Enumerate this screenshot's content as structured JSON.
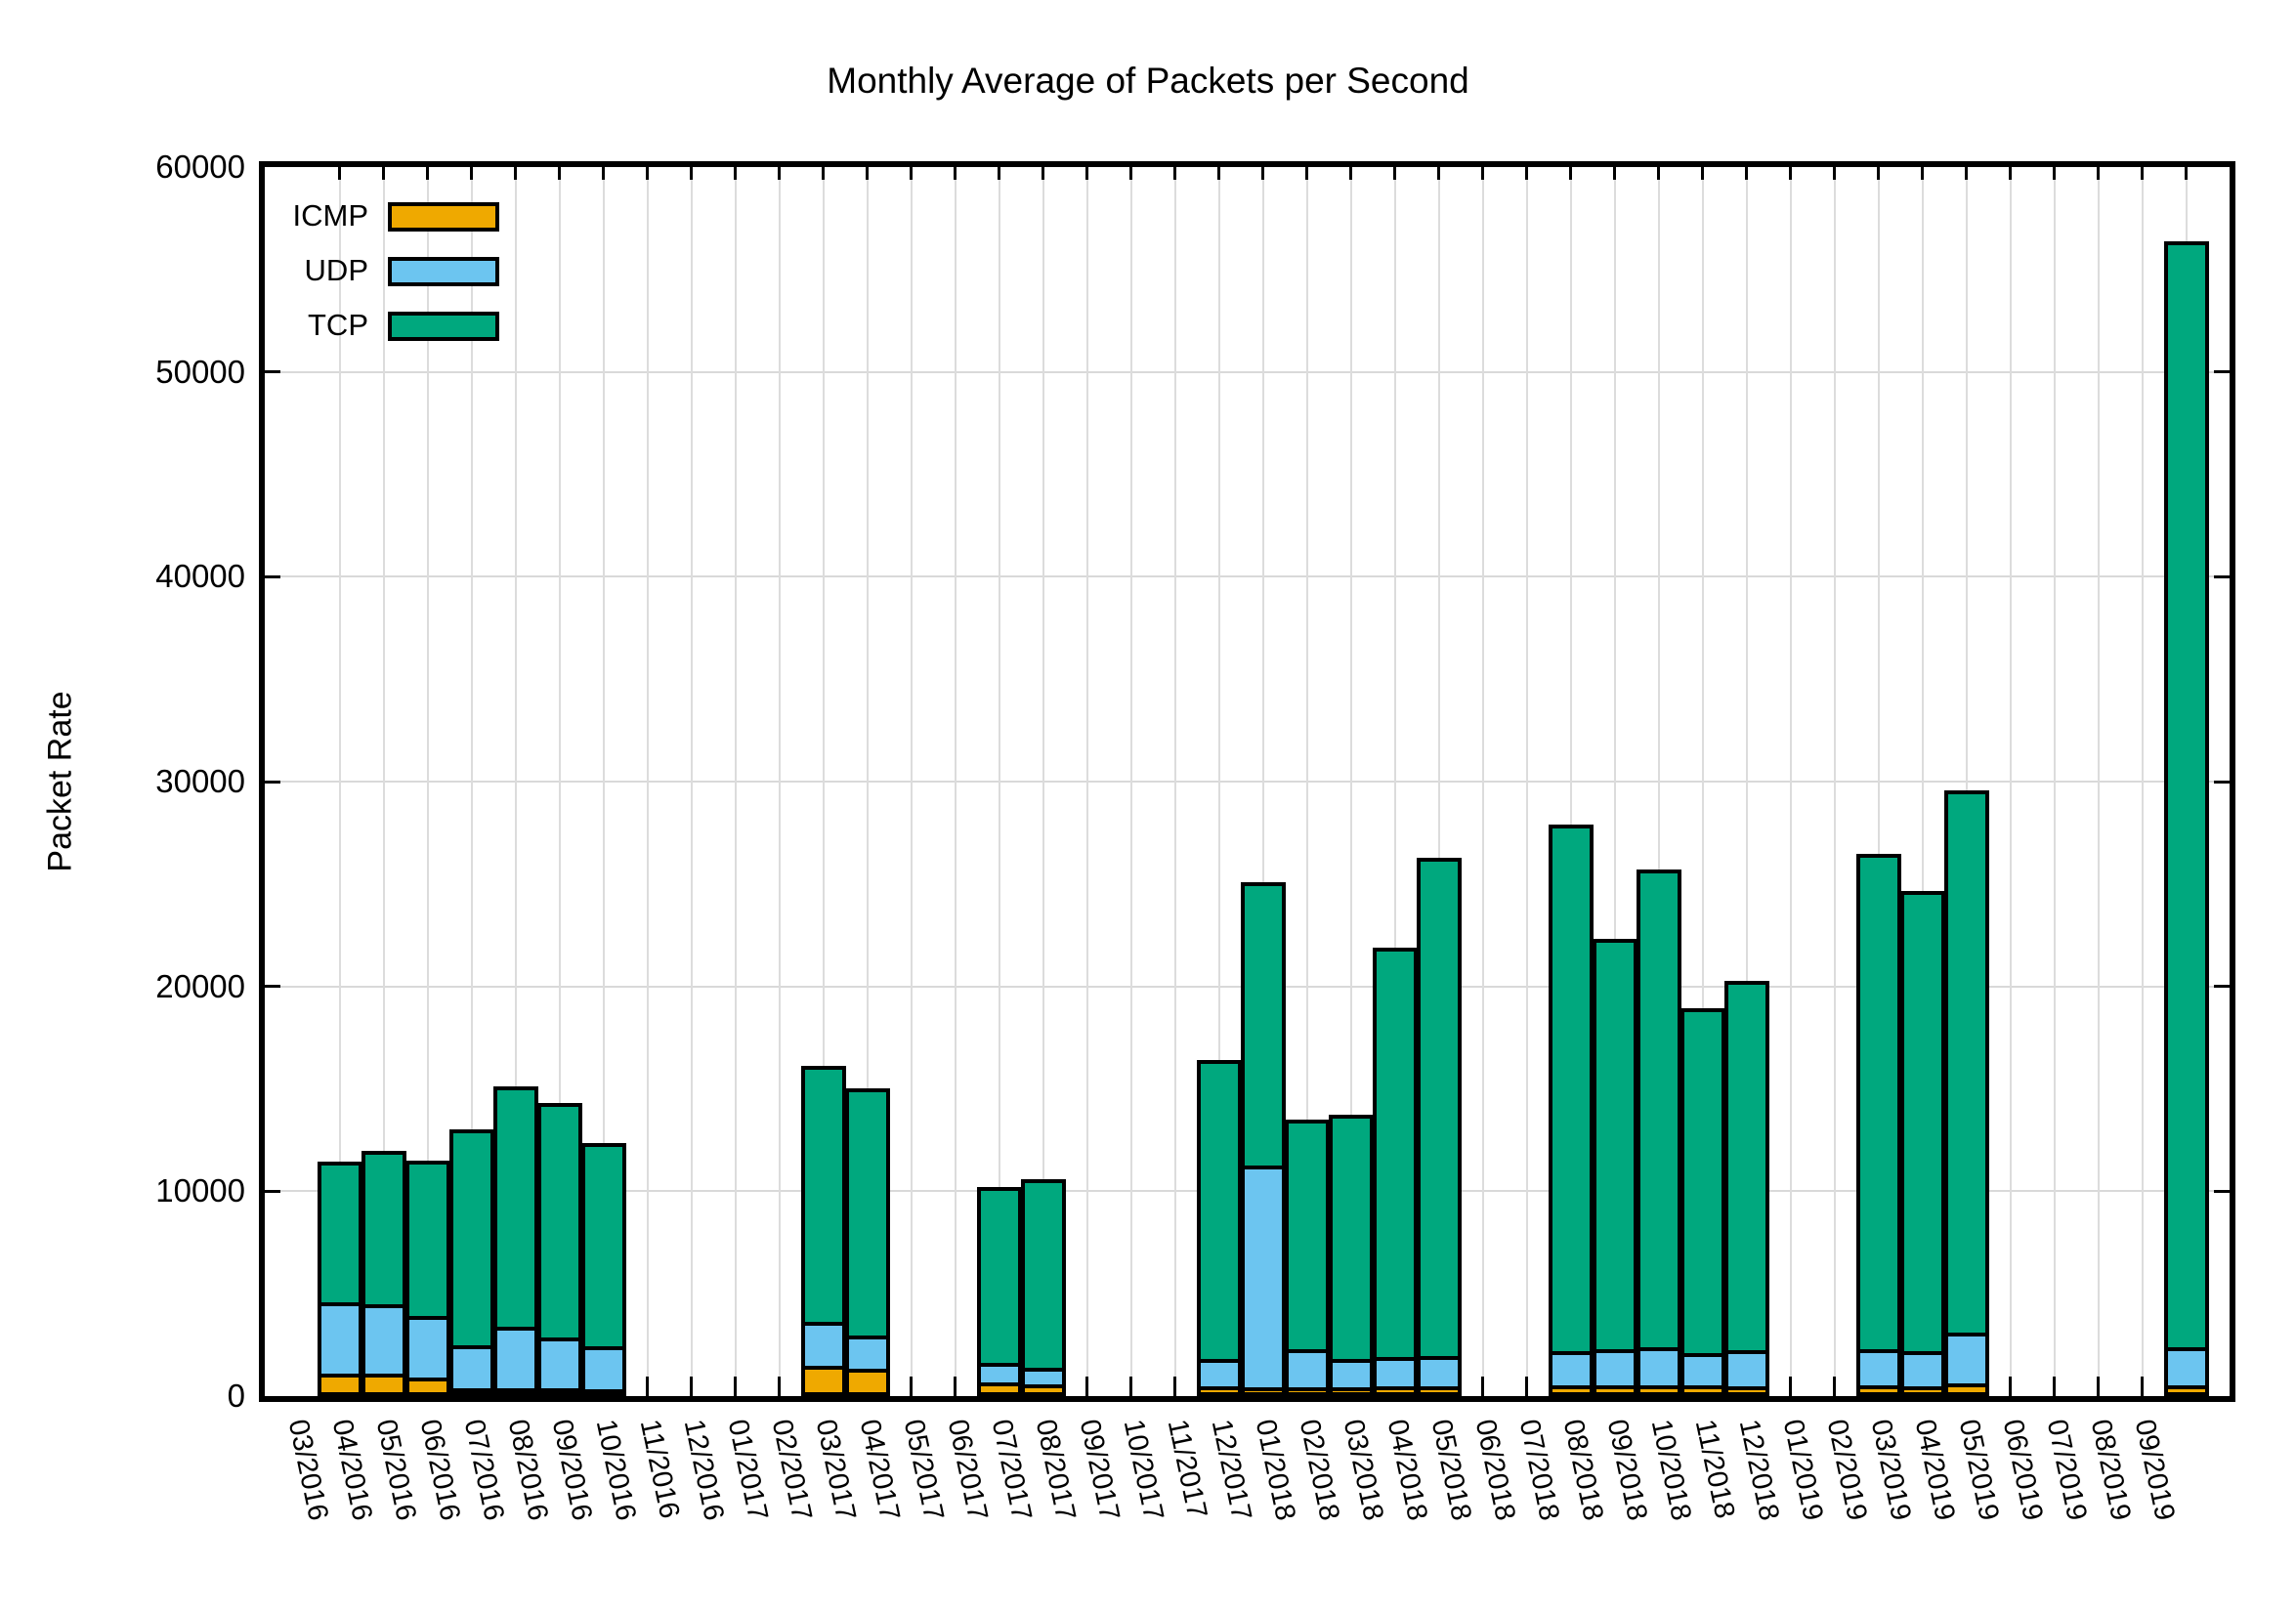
{
  "title": "Monthly Average of Packets per Second",
  "colors": {
    "icmp": "#EFA900",
    "udp": "#6CC5F0",
    "tcp": "#00A87E",
    "axis": "#000000",
    "grid": "#D9D9D9",
    "background": "#FFFFFF"
  },
  "chart_data": {
    "type": "bar",
    "stacked": true,
    "title": "Monthly Average of Packets per Second",
    "xlabel": "",
    "ylabel": "Packet Rate",
    "ylim": [
      0,
      60000
    ],
    "yticks": [
      0,
      10000,
      20000,
      30000,
      40000,
      50000,
      60000
    ],
    "grid": true,
    "legend_position": "top-left-inside",
    "categories": [
      "03/2016",
      "04/2016",
      "05/2016",
      "06/2016",
      "07/2016",
      "08/2016",
      "09/2016",
      "10/2016",
      "11/2016",
      "12/2016",
      "01/2017",
      "02/2017",
      "03/2017",
      "04/2017",
      "05/2017",
      "06/2017",
      "07/2017",
      "08/2017",
      "09/2017",
      "10/2017",
      "11/2017",
      "12/2017",
      "01/2018",
      "02/2018",
      "03/2018",
      "04/2018",
      "05/2018",
      "06/2018",
      "07/2018",
      "08/2018",
      "09/2018",
      "10/2018",
      "11/2018",
      "12/2018",
      "01/2019",
      "02/2019",
      "03/2019",
      "04/2019",
      "05/2019",
      "06/2019",
      "07/2019",
      "08/2019",
      "09/2019"
    ],
    "series": [
      {
        "name": "ICMP",
        "color": "#EFA900",
        "values": [
          900,
          900,
          700,
          200,
          200,
          200,
          150,
          0,
          0,
          0,
          0,
          1300,
          1150,
          0,
          0,
          480,
          380,
          0,
          0,
          0,
          300,
          220,
          250,
          250,
          280,
          300,
          0,
          0,
          320,
          320,
          320,
          320,
          300,
          0,
          0,
          350,
          300,
          450,
          0,
          0,
          0,
          0,
          330
        ]
      },
      {
        "name": "UDP",
        "color": "#6CC5F0",
        "values": [
          3500,
          3400,
          3000,
          2100,
          3000,
          2450,
          2100,
          0,
          0,
          0,
          0,
          2150,
          1600,
          0,
          0,
          950,
          810,
          0,
          0,
          0,
          1300,
          10850,
          1850,
          1350,
          1420,
          1450,
          0,
          0,
          1680,
          1800,
          1860,
          1580,
          1750,
          0,
          0,
          1750,
          1700,
          2450,
          0,
          0,
          0,
          0,
          1860
        ]
      },
      {
        "name": "TCP",
        "color": "#00A87E",
        "values": [
          6850,
          7500,
          7600,
          10550,
          11750,
          11450,
          9900,
          0,
          0,
          0,
          0,
          12500,
          12100,
          0,
          0,
          8570,
          9190,
          0,
          0,
          0,
          14600,
          13830,
          11200,
          11950,
          20000,
          24350,
          0,
          0,
          25700,
          20030,
          23320,
          16850,
          18050,
          0,
          0,
          24200,
          22450,
          26500,
          0,
          0,
          0,
          0,
          54010
        ]
      }
    ]
  }
}
